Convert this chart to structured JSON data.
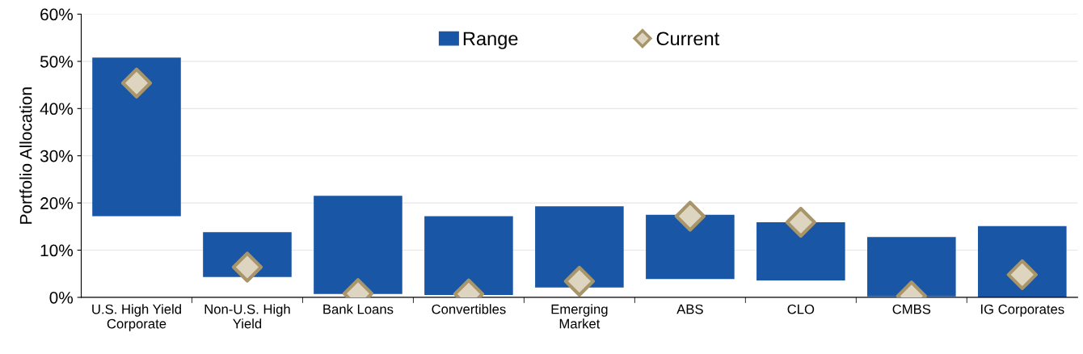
{
  "chart_data": {
    "type": "bar",
    "ylabel": "Portfolio Allocation",
    "categories": [
      "U.S. High Yield\nCorporate",
      "Non-U.S. High\nYield",
      "Bank Loans",
      "Convertibles",
      "Emerging\nMarket",
      "ABS",
      "CLO",
      "CMBS",
      "IG Corporates"
    ],
    "series": [
      {
        "name": "Range",
        "color": "#1a56a6",
        "base": [
          17.2,
          4.3,
          0.7,
          0.5,
          2.1,
          3.9,
          3.6,
          0.2,
          0
        ],
        "values": [
          33.6,
          9.5,
          20.8,
          16.7,
          17.2,
          13.6,
          12.3,
          12.6,
          15.1
        ]
      },
      {
        "name": "Current",
        "type": "scatter",
        "color": "#ddd5c0",
        "marker": "diamond",
        "values": [
          45.4,
          6.4,
          0.8,
          0.7,
          3.4,
          17.2,
          15.9,
          0.3,
          4.8
        ]
      }
    ],
    "ylim": [
      0,
      60
    ],
    "yticks": [
      {
        "value": 0,
        "label": "0%"
      },
      {
        "value": 10,
        "label": "10%"
      },
      {
        "value": 20,
        "label": "20%"
      },
      {
        "value": 30,
        "label": "30%"
      },
      {
        "value": 40,
        "label": "40%"
      },
      {
        "value": 50,
        "label": "50%"
      },
      {
        "value": 60,
        "label": "60%"
      }
    ],
    "grid": "y",
    "legend": "top"
  }
}
